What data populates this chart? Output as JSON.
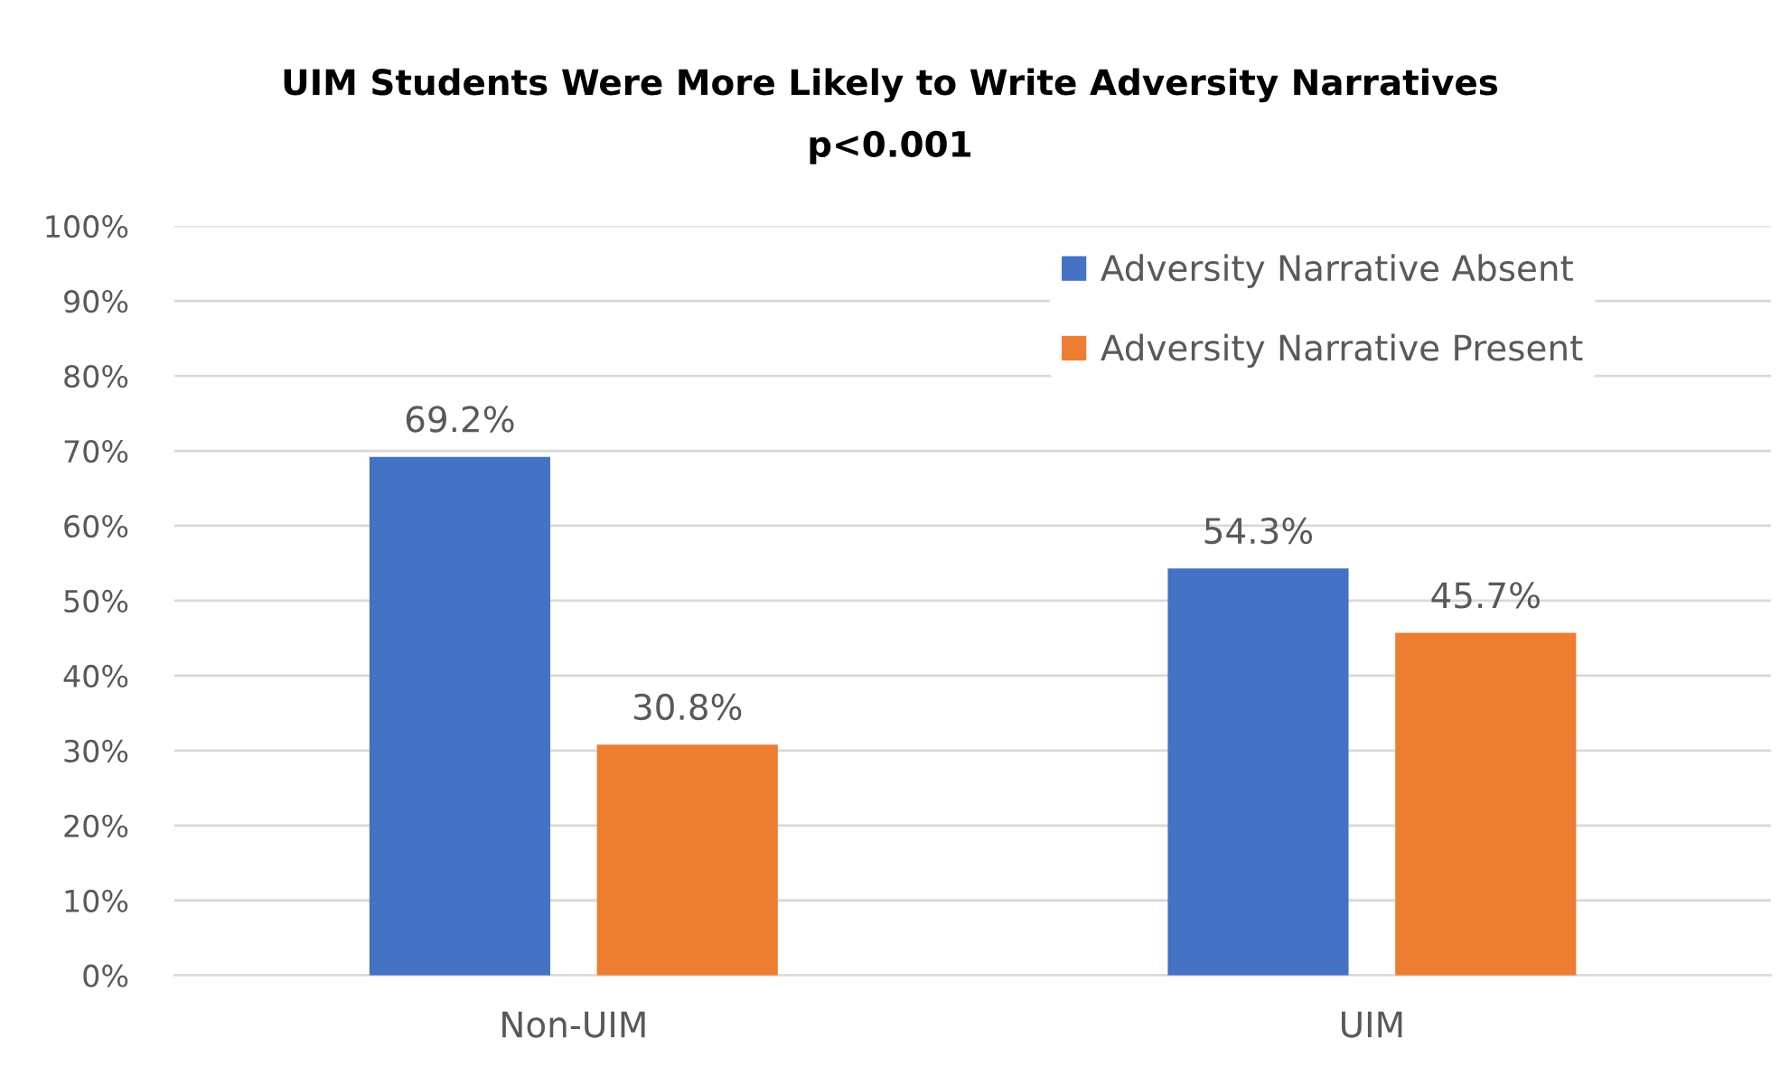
{
  "chart_data": {
    "type": "bar",
    "title": "UIM Students Were More Likely to Write Adversity Narratives",
    "subtitle": "p<0.001",
    "categories": [
      "Non-UIM",
      "UIM"
    ],
    "series": [
      {
        "name": "Adversity Narrative Absent",
        "color": "#4472c4",
        "values": [
          69.2,
          54.3
        ],
        "value_labels": [
          "69.2%",
          "54.3%"
        ]
      },
      {
        "name": "Adversity Narrative Present",
        "color": "#ed7d31",
        "values": [
          30.8,
          45.7
        ],
        "value_labels": [
          "30.8%",
          "45.7%"
        ]
      }
    ],
    "ylim": [
      0,
      100
    ],
    "yticks": [
      {
        "value": 0,
        "label": "0%"
      },
      {
        "value": 10,
        "label": "10%"
      },
      {
        "value": 20,
        "label": "20%"
      },
      {
        "value": 30,
        "label": "30%"
      },
      {
        "value": 40,
        "label": "40%"
      },
      {
        "value": 50,
        "label": "50%"
      },
      {
        "value": 60,
        "label": "60%"
      },
      {
        "value": 70,
        "label": "70%"
      },
      {
        "value": 80,
        "label": "80%"
      },
      {
        "value": 90,
        "label": "90%"
      },
      {
        "value": 100,
        "label": "100%"
      }
    ],
    "grid": "y",
    "legend": "top right"
  }
}
